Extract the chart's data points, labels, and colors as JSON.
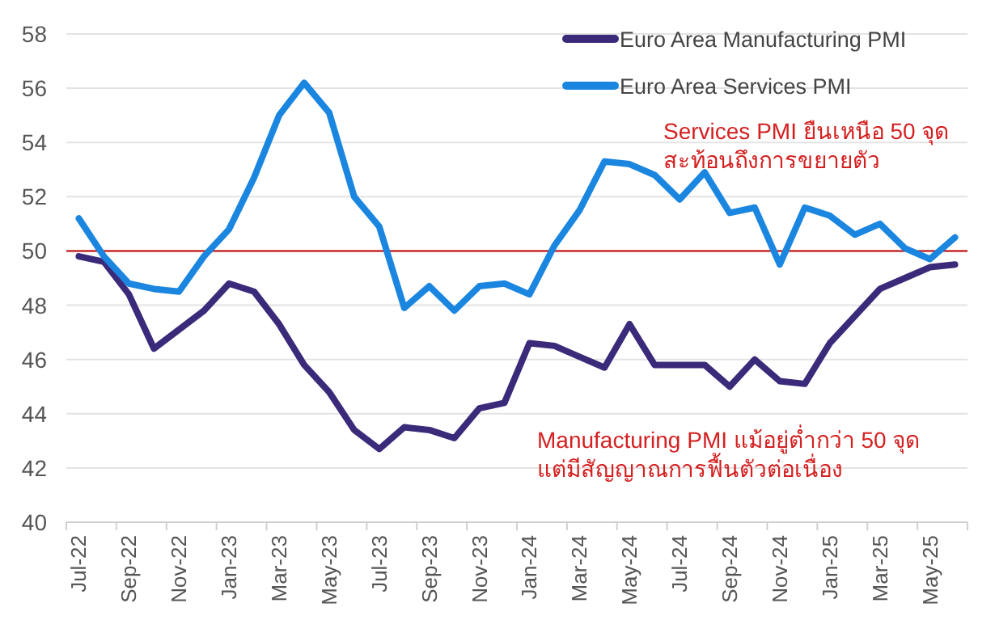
{
  "chart_data": {
    "type": "line",
    "categories": [
      "Jul-22",
      null,
      "Sep-22",
      null,
      "Nov-22",
      null,
      "Jan-23",
      null,
      "Mar-23",
      null,
      "May-23",
      null,
      "Jul-23",
      null,
      "Sep-23",
      null,
      "Nov-23",
      null,
      "Jan-24",
      null,
      "Mar-24",
      null,
      "May-24",
      null,
      "Jul-24",
      null,
      "Sep-24",
      null,
      "Nov-24",
      null,
      "Jan-25",
      null,
      "Mar-25",
      null,
      "May-25",
      null
    ],
    "series": [
      {
        "name": "Euro Area Manufacturing PMI",
        "color": "#3b2a7a",
        "values": [
          49.8,
          49.6,
          48.4,
          46.4,
          47.1,
          47.8,
          48.8,
          48.5,
          47.3,
          45.8,
          44.8,
          43.4,
          42.7,
          43.5,
          43.4,
          43.1,
          44.2,
          44.4,
          46.6,
          46.5,
          46.1,
          45.7,
          47.3,
          45.8,
          45.8,
          45.8,
          45.0,
          46.0,
          45.2,
          45.1,
          46.6,
          47.6,
          48.6,
          49.0,
          49.4,
          49.5
        ]
      },
      {
        "name": "Euro Area Services PMI",
        "color": "#1a86e0",
        "values": [
          51.2,
          49.8,
          48.8,
          48.6,
          48.5,
          49.8,
          50.8,
          52.7,
          55.0,
          56.2,
          55.1,
          52.0,
          50.9,
          47.9,
          48.7,
          47.8,
          48.7,
          48.8,
          48.4,
          50.2,
          51.5,
          53.3,
          53.2,
          52.8,
          51.9,
          52.9,
          51.4,
          51.6,
          49.5,
          51.6,
          51.3,
          50.6,
          51.0,
          50.1,
          49.7,
          50.5
        ]
      }
    ],
    "ylim": [
      40,
      58
    ],
    "yticks": [
      40,
      42,
      44,
      46,
      48,
      50,
      52,
      54,
      56,
      58
    ],
    "grid": "y",
    "legend": "top right",
    "marker": "none",
    "line_style": "solid",
    "ref_lines": [
      {
        "axis": "y",
        "value": 50,
        "label": null,
        "color": "#c00000"
      }
    ],
    "annotations": [
      "Services PMI ยืนเหนือ 50 จุด\nสะท้อนถึงการขยายตัว",
      "Manufacturing PMI แม้อยู่ต่ำกว่า 50 จุด\nแต่มีสัญญาณการฟื้นตัวต่อเนื่อง"
    ]
  }
}
